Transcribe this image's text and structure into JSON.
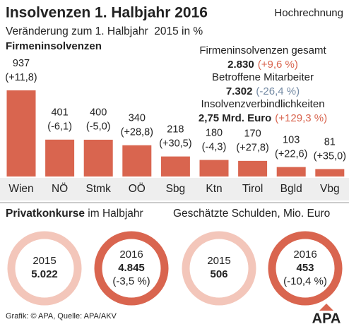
{
  "header": {
    "title": "Insolvenzen 1. Halbjahr 2016",
    "note": "Hochrechnung",
    "subtitle": "Veränderung zum 1. Halbjahr  2015 in %"
  },
  "chart_data": {
    "type": "bar",
    "title": "Firmeninsolvenzen",
    "categories": [
      "Wien",
      "NÖ",
      "Stmk",
      "OÖ",
      "Sbg",
      "Ktn",
      "Tirol",
      "Bgld",
      "Vbg"
    ],
    "values": [
      937,
      401,
      400,
      340,
      218,
      180,
      170,
      103,
      81
    ],
    "change_labels": [
      "(+11,8)",
      "(-6,1)",
      "(-5,0)",
      "(+28,8)",
      "(+30,5)",
      "(-4,3)",
      "(+27,8)",
      "(+22,6)",
      "(+35,0)"
    ],
    "color": "#d9654f",
    "up_color": "#d9654f",
    "down_color": "#7389a3"
  },
  "summary": [
    {
      "label": "Firmeninsolvenzen gesamt",
      "value": "2.830",
      "change": "(+9,6 %)"
    },
    {
      "label": "Betroffene Mitarbeiter",
      "value": "7.302",
      "change": "(-26,4 %)"
    },
    {
      "label": "Insolvenzverbindlichkeiten",
      "value": "2,75 Mrd. Euro",
      "change": "(+129,3 %)"
    }
  ],
  "private": {
    "title_bold": "Privatkonkurse",
    "title_rest": " im Halbjahr",
    "rings": [
      {
        "year": "2015",
        "value": "5.022",
        "color": "#f3c6ba"
      },
      {
        "year": "2016",
        "value": "4.845",
        "change": "(-3,5 %)",
        "color": "#d9654f"
      }
    ]
  },
  "debt": {
    "title": "Geschätzte Schulden, Mio. Euro",
    "rings": [
      {
        "year": "2015",
        "value": "506",
        "color": "#f3c6ba"
      },
      {
        "year": "2016",
        "value": "453",
        "change": "(-10,4 %)",
        "color": "#d9654f"
      }
    ]
  },
  "footer": {
    "source": "Grafik: © APA, Quelle: APA/AKV",
    "logo": "APA"
  }
}
